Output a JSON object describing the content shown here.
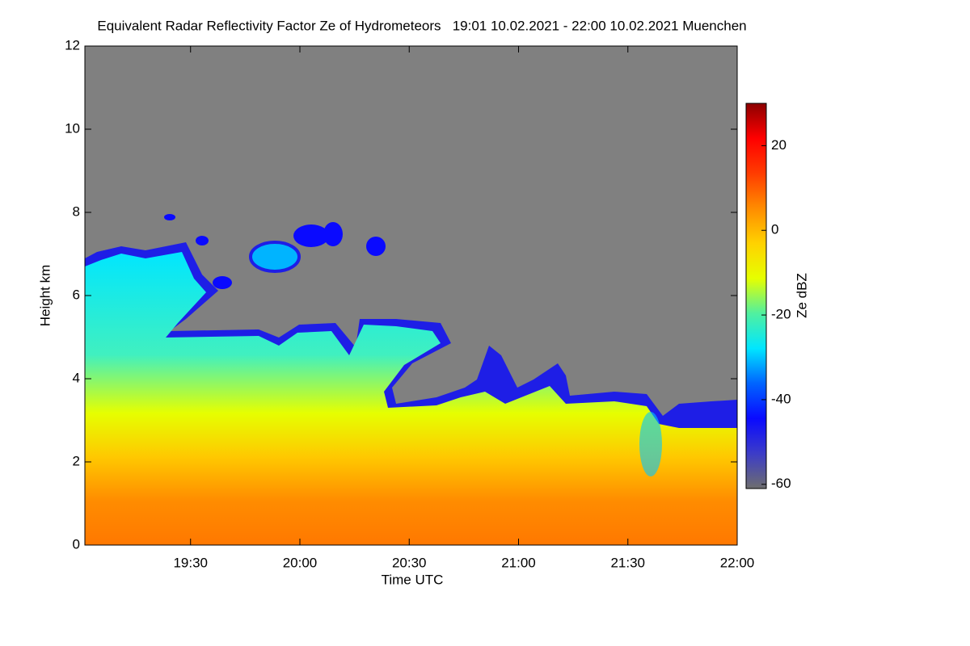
{
  "chart_data": {
    "type": "heatmap",
    "title": "Equivalent Radar Reflectivity Factor Ze of Hydrometeors   19:01 10.02.2021 - 22:00 10.02.2021 Muenchen",
    "x_label": "Time UTC",
    "y_label": "Height km",
    "xlim": [
      19.01667,
      22.0
    ],
    "xticks": [
      {
        "value": 19.5,
        "label": "19:30"
      },
      {
        "value": 20.0,
        "label": "20:00"
      },
      {
        "value": 20.5,
        "label": "20:30"
      },
      {
        "value": 21.0,
        "label": "21:00"
      },
      {
        "value": 21.5,
        "label": "21:30"
      },
      {
        "value": 22.0,
        "label": "22:00"
      }
    ],
    "ylim": [
      0,
      12
    ],
    "yticks": [
      0,
      2,
      4,
      6,
      8,
      10,
      12
    ],
    "colorbar": {
      "label": "Ze dBZ",
      "lim": [
        -61,
        30
      ],
      "ticks": [
        -60,
        -40,
        -20,
        0,
        20
      ],
      "colors": [
        "#6e6e6e",
        "#3c3cc8",
        "#0a0aff",
        "#0064ff",
        "#00e6ff",
        "#50f0a0",
        "#e6ff00",
        "#ffd200",
        "#ff8c00",
        "#ff3c00",
        "#ff0000",
        "#8c0000"
      ]
    }
  }
}
